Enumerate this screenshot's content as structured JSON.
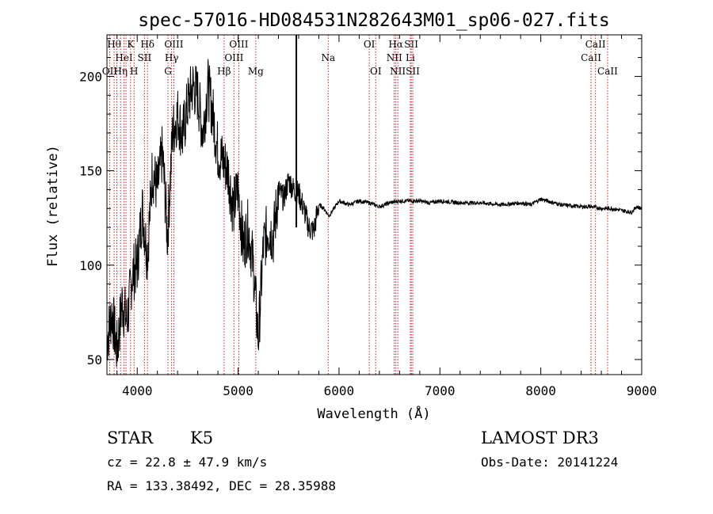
{
  "chart_data": {
    "type": "line",
    "title": "spec-57016-HD084531N282643M01_sp06-027.fits",
    "xlabel": "Wavelength (Å)",
    "ylabel": "Flux (relative)",
    "xlim": [
      3700,
      9000
    ],
    "ylim": [
      42,
      222
    ],
    "xticks": [
      4000,
      5000,
      6000,
      7000,
      8000,
      9000
    ],
    "yticks": [
      50,
      100,
      150,
      200
    ],
    "grid": false,
    "series": [
      {
        "color": "#000000",
        "x": [
          3700,
          3750,
          3800,
          3850,
          3900,
          3950,
          4000,
          4050,
          4100,
          4150,
          4200,
          4250,
          4300,
          4350,
          4400,
          4450,
          4500,
          4550,
          4600,
          4650,
          4700,
          4750,
          4800,
          4850,
          4900,
          4950,
          5000,
          5050,
          5100,
          5150,
          5200,
          5250,
          5300,
          5350,
          5400,
          5450,
          5500,
          5550,
          5600,
          5650,
          5700,
          5750,
          5800,
          5850,
          5900,
          6000,
          6100,
          6200,
          6300,
          6400,
          6500,
          6600,
          6700,
          6800,
          6900,
          7000,
          7200,
          7400,
          7600,
          7800,
          7900,
          8000,
          8200,
          8400,
          8500,
          8600,
          8700,
          8800,
          8900,
          8950,
          9000
        ],
        "y": [
          60,
          75,
          55,
          80,
          70,
          95,
          100,
          130,
          105,
          150,
          140,
          160,
          115,
          170,
          180,
          168,
          185,
          195,
          190,
          170,
          195,
          180,
          160,
          155,
          150,
          130,
          140,
          110,
          120,
          100,
          60,
          110,
          120,
          115,
          140,
          135,
          145,
          140,
          138,
          130,
          120,
          118,
          132,
          130,
          126,
          134,
          132,
          134,
          133,
          131,
          133,
          134,
          134,
          134,
          133,
          134,
          133,
          133,
          132,
          133,
          132,
          135,
          132,
          131,
          131,
          130,
          130,
          129,
          128,
          131,
          130
        ]
      }
    ]
  },
  "vertical_line_x": 5577,
  "emission_lines": [
    {
      "wave": 3727,
      "label": "OII",
      "row": 2
    },
    {
      "wave": 3771,
      "label": "Hθ",
      "row": 0
    },
    {
      "wave": 3798,
      "label": "",
      "row": 0
    },
    {
      "wave": 3835,
      "label": "Hη",
      "row": 2
    },
    {
      "wave": 3869,
      "label": "HeI",
      "row": 1
    },
    {
      "wave": 3889,
      "label": "",
      "row": 0
    },
    {
      "wave": 3934,
      "label": "K",
      "row": 0
    },
    {
      "wave": 3969,
      "label": "H",
      "row": 2
    },
    {
      "wave": 4072,
      "label": "SII",
      "row": 1
    },
    {
      "wave": 4102,
      "label": "Hδ",
      "row": 0
    },
    {
      "wave": 4305,
      "label": "G",
      "row": 2
    },
    {
      "wave": 4341,
      "label": "Hγ",
      "row": 1
    },
    {
      "wave": 4363,
      "label": "OIII",
      "row": 0
    },
    {
      "wave": 4861,
      "label": "Hβ",
      "row": 2
    },
    {
      "wave": 4959,
      "label": "OIII",
      "row": 1
    },
    {
      "wave": 5007,
      "label": "OIII",
      "row": 0
    },
    {
      "wave": 5175,
      "label": "Mg",
      "row": 2
    },
    {
      "wave": 5893,
      "label": "Na",
      "row": 1
    },
    {
      "wave": 6300,
      "label": "OI",
      "row": 0
    },
    {
      "wave": 6364,
      "label": "OI",
      "row": 2
    },
    {
      "wave": 6548,
      "label": "NII",
      "row": 1
    },
    {
      "wave": 6563,
      "label": "Hα",
      "row": 0
    },
    {
      "wave": 6583,
      "label": "NII",
      "row": 2
    },
    {
      "wave": 6707,
      "label": "Li",
      "row": 1
    },
    {
      "wave": 6716,
      "label": "SII",
      "row": 0
    },
    {
      "wave": 6731,
      "label": "SII",
      "row": 2
    },
    {
      "wave": 8498,
      "label": "CaII",
      "row": 1
    },
    {
      "wave": 8542,
      "label": "CaII",
      "row": 0
    },
    {
      "wave": 8662,
      "label": "CaII",
      "row": 2
    }
  ],
  "info": {
    "class": "STAR",
    "subclass": "K5",
    "survey": "LAMOST DR3",
    "cz": "cz = 22.8 ± 47.9 km/s",
    "obs_date": "Obs-Date: 20141224",
    "radec": "RA = 133.38492, DEC =  28.35988"
  }
}
